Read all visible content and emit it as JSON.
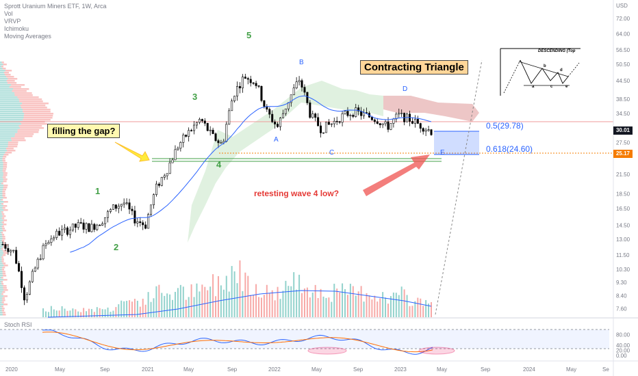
{
  "legend": {
    "title": "Sprott Uranium Miners ETF, 1W, Arca",
    "indicators": [
      "Vol",
      "VRVP",
      "Ichimoku",
      "Moving Averages"
    ]
  },
  "currency": "USD",
  "colors": {
    "up": "#26a69a",
    "down": "#ef5350",
    "candle": "#000000",
    "ma": "#2962ff",
    "wave_green": "#43a047",
    "wave_blue": "#2962ff",
    "price_tag": "#131722",
    "fib_tag": "#f57c00"
  },
  "price_axis": {
    "labels": [
      "72.00",
      "64.00",
      "56.50",
      "50.50",
      "44.50",
      "38.50",
      "34.50",
      "30.01",
      "27.50",
      "25.17",
      "21.50",
      "18.50",
      "16.50",
      "14.50",
      "13.00",
      "11.50",
      "10.30",
      "9.30",
      "8.40",
      "7.60"
    ],
    "current_price": "30.01",
    "fib_price": "25.17"
  },
  "rsi_axis": {
    "labels": [
      "80.00",
      "40.00",
      "20.00",
      "0.00"
    ]
  },
  "time_axis": {
    "labels": [
      "2020",
      "May",
      "Sep",
      "2021",
      "May",
      "Sep",
      "2022",
      "May",
      "Sep",
      "2023",
      "May",
      "Sep",
      "2024",
      "May",
      "Se"
    ]
  },
  "annotations": {
    "filling_gap": "filling the gap?",
    "contracting_triangle": "Contracting Triangle",
    "retesting": "retesting wave 4 low?",
    "fib_05": "0.5(29.78)",
    "fib_0618": "0.618(24.60)",
    "waves_green": [
      "1",
      "2",
      "3",
      "4",
      "5"
    ],
    "waves_blue": [
      "A",
      "B",
      "C",
      "D",
      "E"
    ],
    "inset_title": "DESCENDING (Top",
    "inset_labels": [
      "b",
      "d",
      "a",
      "c",
      "e"
    ]
  },
  "rsi_title": "Stoch RSI",
  "chart_data": {
    "type": "candlestick",
    "title": "Sprott Uranium Miners ETF, 1W, Arca",
    "scale": "log",
    "ylim": [
      7.2,
      80
    ],
    "x": [
      "2020-01",
      "2020-02",
      "2020-03",
      "2020-04",
      "2020-05",
      "2020-06",
      "2020-07",
      "2020-08",
      "2020-09",
      "2020-10",
      "2020-11",
      "2020-12",
      "2021-01",
      "2021-02",
      "2021-03",
      "2021-04",
      "2021-05",
      "2021-06",
      "2021-07",
      "2021-08",
      "2021-09",
      "2021-10",
      "2021-11",
      "2021-12",
      "2022-01",
      "2022-02",
      "2022-03",
      "2022-04",
      "2022-05",
      "2022-06",
      "2022-07",
      "2022-08",
      "2022-09",
      "2022-10",
      "2022-11",
      "2022-12",
      "2023-01",
      "2023-02",
      "2023-03",
      "2023-04"
    ],
    "close": [
      12.5,
      11.8,
      8.2,
      10.5,
      12.8,
      13.6,
      14.0,
      14.5,
      14.2,
      15.0,
      16.5,
      17.3,
      15.2,
      14.5,
      19.5,
      22.5,
      27.0,
      30.0,
      33.0,
      29.0,
      27.0,
      40.0,
      46.0,
      44.0,
      35.0,
      31.0,
      38.0,
      45.0,
      34.0,
      30.5,
      32.0,
      34.0,
      35.0,
      34.0,
      33.0,
      31.0,
      34.0,
      33.0,
      31.5,
      30.01
    ],
    "ma_note": "Moving Averages",
    "series": [
      {
        "name": "Vol",
        "values": [
          1,
          1,
          2,
          1,
          1,
          1,
          1,
          1,
          1,
          1,
          1,
          2,
          2,
          2,
          3,
          3,
          3,
          3,
          3,
          4,
          4,
          6,
          5,
          4,
          3,
          3,
          4,
          4,
          4,
          3,
          3,
          3,
          3,
          3,
          3,
          2,
          3,
          2,
          2,
          2
        ]
      }
    ],
    "fib_levels": [
      {
        "label": "0.5(29.78)",
        "value": 29.78
      },
      {
        "label": "0.618(24.60)",
        "value": 24.6
      }
    ],
    "current_price": 30.01,
    "annotations": [
      "filling the gap?",
      "Contracting Triangle",
      "retesting wave 4 low?"
    ]
  }
}
